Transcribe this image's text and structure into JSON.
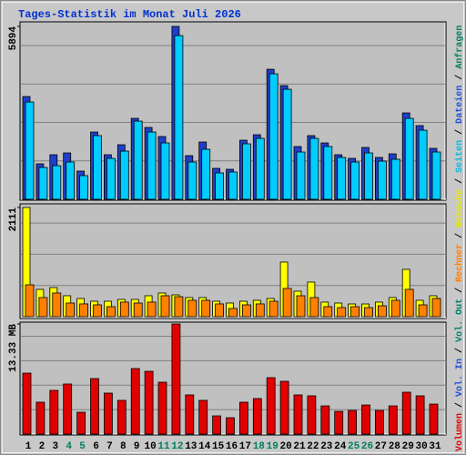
{
  "title": "Tages-Statistik im Monat Juli 2026",
  "legend": {
    "separator": " / ",
    "items": [
      {
        "label": "Volumen",
        "color": "#e00000"
      },
      {
        "label": "Vol. In",
        "color": "#1f4fd8"
      },
      {
        "label": "Vol. Out",
        "color": "#008070"
      },
      {
        "label": "Rechner",
        "color": "#ff8000"
      },
      {
        "label": "Besuche",
        "color": "#e8e800"
      },
      {
        "label": "Seiten",
        "color": "#00b8e8"
      },
      {
        "label": "Dateien",
        "color": "#1f4fd8"
      },
      {
        "label": "Anfragen",
        "color": "#008060"
      }
    ]
  },
  "chart_data": [
    {
      "type": "bar",
      "ylim": [
        0,
        5894
      ],
      "yticks": [
        5894
      ],
      "series": [
        {
          "name": "Anfragen",
          "color": "#1f3fc8",
          "values": [
            3503,
            1209,
            1519,
            1581,
            961,
            2294,
            1519,
            1860,
            2759,
            2449,
            2139,
            5894,
            1488,
            1953,
            1054,
            1023,
            2015,
            2201,
            4433,
            3875,
            1798,
            2170,
            1922,
            1519,
            1395,
            1767,
            1426,
            1550,
            2945,
            2511,
            1736
          ]
        },
        {
          "name": "Dateien",
          "color": "#00ccff",
          "values": [
            3379,
            1147,
            1209,
            1333,
            868,
            2232,
            1457,
            1705,
            2728,
            2356,
            1984,
            5642,
            1333,
            1767,
            961,
            992,
            1953,
            2139,
            4340,
            3813,
            1674,
            2139,
            1860,
            1488,
            1333,
            1643,
            1364,
            1426,
            2821,
            2418,
            1674
          ]
        }
      ]
    },
    {
      "type": "bar",
      "ylim": [
        0,
        2111
      ],
      "yticks": [
        2111
      ],
      "series": [
        {
          "name": "Besuche",
          "color": "#ffff00",
          "values": [
            2111,
            528,
            563,
            405,
            352,
            299,
            299,
            334,
            334,
            405,
            458,
            422,
            370,
            370,
            299,
            264,
            299,
            317,
            352,
            1056,
            493,
            669,
            282,
            264,
            246,
            246,
            282,
            370,
            915,
            317,
            405
          ]
        },
        {
          "name": "Rechner",
          "color": "#ff8000",
          "values": [
            651,
            405,
            493,
            299,
            282,
            264,
            229,
            317,
            299,
            317,
            440,
            422,
            352,
            352,
            282,
            194,
            264,
            282,
            334,
            581,
            440,
            405,
            229,
            211,
            229,
            211,
            246,
            352,
            563,
            264,
            387
          ]
        }
      ]
    },
    {
      "type": "bar",
      "ylim": [
        0,
        13.33
      ],
      "yticks": [
        {
          "value": 13.33,
          "label": "13.33 MB"
        }
      ],
      "categories": [
        "1",
        "2",
        "3",
        "4",
        "5",
        "6",
        "7",
        "8",
        "9",
        "10",
        "11",
        "12",
        "13",
        "14",
        "15",
        "16",
        "17",
        "18",
        "19",
        "20",
        "21",
        "22",
        "23",
        "24",
        "25",
        "26",
        "27",
        "28",
        "29",
        "30",
        "31"
      ],
      "category_colors": [
        "#000000",
        "#000000",
        "#000000",
        "#008060",
        "#008060",
        "#000000",
        "#000000",
        "#000000",
        "#000000",
        "#000000",
        "#008060",
        "#008060",
        "#000000",
        "#000000",
        "#000000",
        "#000000",
        "#000000",
        "#008060",
        "#008060",
        "#000000",
        "#000000",
        "#000000",
        "#000000",
        "#000000",
        "#008060",
        "#008060",
        "#000000",
        "#000000",
        "#000000",
        "#000000",
        "#000000"
      ],
      "series": [
        {
          "name": "Volumen",
          "color": "#e00000",
          "values": [
            7.38,
            3.86,
            5.29,
            6.06,
            2.64,
            6.72,
            4.96,
            4.08,
            7.93,
            7.6,
            6.28,
            13.33,
            4.74,
            4.08,
            2.2,
            1.98,
            3.86,
            4.3,
            6.83,
            6.39,
            4.74,
            4.63,
            3.41,
            2.75,
            2.86,
            3.52,
            2.86,
            3.41,
            5.07,
            4.63,
            3.63
          ]
        }
      ]
    }
  ]
}
